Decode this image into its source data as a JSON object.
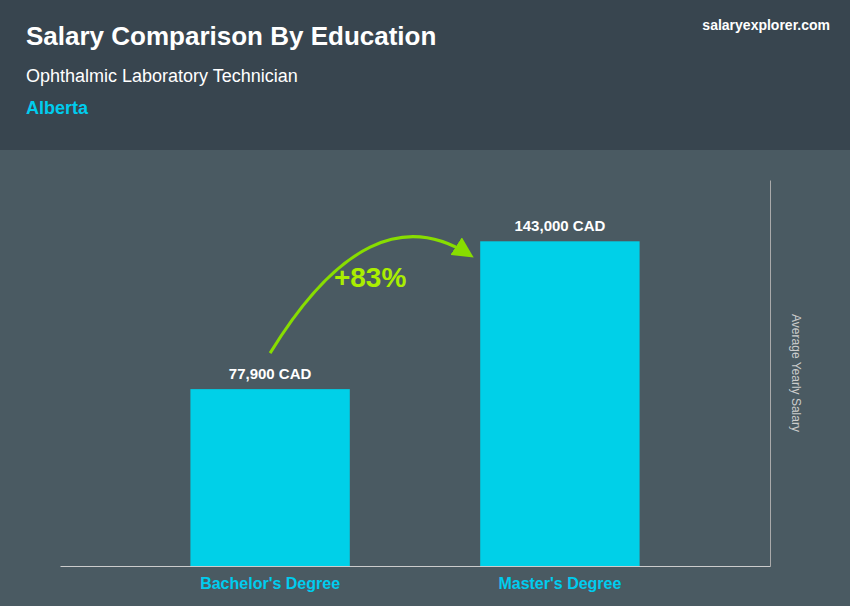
{
  "chart_data": {
    "type": "bar",
    "title": "Salary Comparison By Education",
    "subtitle": "Ophthalmic Laboratory Technician",
    "annotations": [
      "Alberta",
      "+83%",
      "salaryexplorer.com"
    ],
    "ylabel": "Average Yearly Salary",
    "categories": [
      "Bachelor's Degree",
      "Master's Degree"
    ],
    "values": [
      77900,
      143000
    ],
    "value_labels": [
      "77,900 CAD",
      "143,000 CAD"
    ],
    "data_labels": true,
    "color": "#00d0e8",
    "ylim": [
      0,
      170000
    ],
    "tick_labels": false,
    "grid": false
  }
}
